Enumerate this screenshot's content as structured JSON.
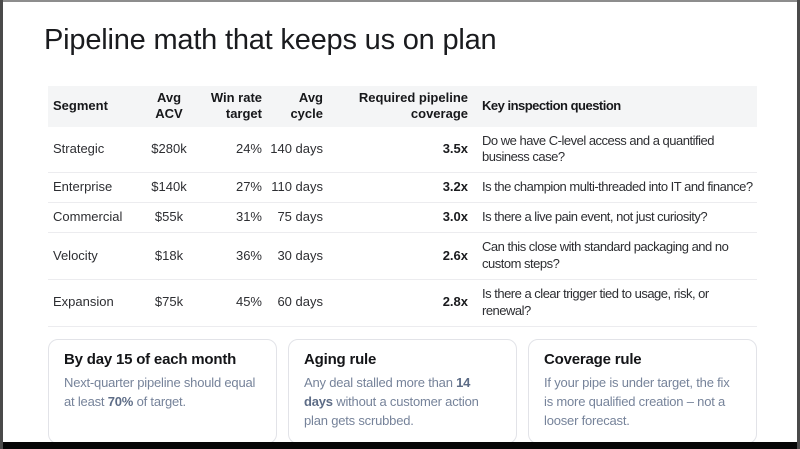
{
  "slide": {
    "title": "Pipeline math that keeps us on plan"
  },
  "table": {
    "columns": [
      {
        "id": "segment",
        "label": "Segment",
        "align": "left"
      },
      {
        "id": "avg_acv",
        "label": "Avg\nACV",
        "align": "center"
      },
      {
        "id": "win_rate_target",
        "label": "Win rate\ntarget",
        "align": "right"
      },
      {
        "id": "avg_cycle",
        "label": "Avg\ncycle",
        "align": "right"
      },
      {
        "id": "required_pipeline_coverage",
        "label": "Required pipeline\ncoverage",
        "align": "right"
      },
      {
        "id": "key_inspection_question",
        "label": "Key inspection question",
        "align": "left"
      }
    ],
    "rows": [
      [
        "Strategic",
        "$280k",
        "24%",
        "140 days",
        "3.5x",
        "Do we have C-level access and a quantified business case?"
      ],
      [
        "Enterprise",
        "$140k",
        "27%",
        "110 days",
        "3.2x",
        "Is the champion multi-threaded into IT and finance?"
      ],
      [
        "Commercial",
        "$55k",
        "31%",
        "75 days",
        "3.0x",
        "Is there a live pain event, not just curiosity?"
      ],
      [
        "Velocity",
        "$18k",
        "36%",
        "30 days",
        "2.6x",
        "Can this close with standard packaging and no custom steps?"
      ],
      [
        "Expansion",
        "$75k",
        "45%",
        "60 days",
        "2.8x",
        "Is there a clear trigger tied to usage, risk, or renewal?"
      ]
    ]
  },
  "cards": [
    {
      "title": "By day 15 of each month",
      "body": [
        {
          "text": "Next-quarter pipeline should equal at least "
        },
        {
          "text": "70%",
          "bold": true
        },
        {
          "text": " of target."
        }
      ]
    },
    {
      "title": "Aging rule",
      "body": [
        {
          "text": "Any deal stalled more than "
        },
        {
          "text": "14 days",
          "bold": true
        },
        {
          "text": " without a customer action plan gets scrubbed."
        }
      ]
    },
    {
      "title": "Coverage rule",
      "body": [
        {
          "text": "If your pipe is under target, the fix is more qualified creation – not a looser forecast."
        }
      ]
    }
  ],
  "colors": {
    "header_band_bg": "#f4f5f6",
    "card_body_text": "#76839a",
    "card_body_bold_text": "#5d6c86"
  }
}
